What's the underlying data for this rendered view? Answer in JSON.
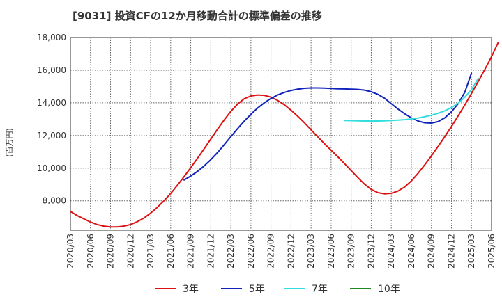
{
  "chart_data": {
    "type": "line",
    "title": "[9031]  投資CFの12か月移動合計の標準偏差の推移",
    "ylabel": "(百万円)",
    "xlabel": "",
    "ylim": [
      6200,
      18000
    ],
    "y_ticks": [
      8000,
      10000,
      12000,
      14000,
      16000,
      18000
    ],
    "y_tick_labels": [
      "8,000",
      "10,000",
      "12,000",
      "14,000",
      "16,000",
      "18,000"
    ],
    "x_tick_labels": [
      "2020/03",
      "2020/06",
      "2020/09",
      "2020/12",
      "2021/03",
      "2021/06",
      "2021/09",
      "2021/12",
      "2022/03",
      "2022/06",
      "2022/09",
      "2022/12",
      "2023/03",
      "2023/06",
      "2023/09",
      "2023/12",
      "2024/03",
      "2024/06",
      "2024/09",
      "2024/12",
      "2025/03",
      "2025/06"
    ],
    "grid": true,
    "legend_position": "bottom",
    "series": [
      {
        "name": "3年",
        "color": "#dd1111",
        "points": [
          [
            "2020/03",
            7350
          ],
          [
            "2020/04",
            7100
          ],
          [
            "2020/05",
            6900
          ],
          [
            "2020/06",
            6700
          ],
          [
            "2020/07",
            6550
          ],
          [
            "2020/08",
            6450
          ],
          [
            "2020/09",
            6400
          ],
          [
            "2020/10",
            6400
          ],
          [
            "2020/11",
            6450
          ],
          [
            "2020/12",
            6550
          ],
          [
            "2021/01",
            6720
          ],
          [
            "2021/02",
            6950
          ],
          [
            "2021/03",
            7250
          ],
          [
            "2021/04",
            7600
          ],
          [
            "2021/05",
            8000
          ],
          [
            "2021/06",
            8450
          ],
          [
            "2021/07",
            8950
          ],
          [
            "2021/08",
            9480
          ],
          [
            "2021/09",
            10030
          ],
          [
            "2021/10",
            10600
          ],
          [
            "2021/11",
            11180
          ],
          [
            "2021/12",
            11780
          ],
          [
            "2022/01",
            12380
          ],
          [
            "2022/02",
            12950
          ],
          [
            "2022/03",
            13480
          ],
          [
            "2022/04",
            13920
          ],
          [
            "2022/05",
            14250
          ],
          [
            "2022/06",
            14420
          ],
          [
            "2022/07",
            14480
          ],
          [
            "2022/08",
            14460
          ],
          [
            "2022/09",
            14350
          ],
          [
            "2022/10",
            14150
          ],
          [
            "2022/11",
            13880
          ],
          [
            "2022/12",
            13550
          ],
          [
            "2023/01",
            13180
          ],
          [
            "2023/02",
            12780
          ],
          [
            "2023/03",
            12350
          ],
          [
            "2023/04",
            11920
          ],
          [
            "2023/05",
            11500
          ],
          [
            "2023/06",
            11100
          ],
          [
            "2023/07",
            10700
          ],
          [
            "2023/08",
            10280
          ],
          [
            "2023/09",
            9850
          ],
          [
            "2023/10",
            9420
          ],
          [
            "2023/11",
            9020
          ],
          [
            "2023/12",
            8700
          ],
          [
            "2024/01",
            8500
          ],
          [
            "2024/02",
            8430
          ],
          [
            "2024/03",
            8460
          ],
          [
            "2024/04",
            8600
          ],
          [
            "2024/05",
            8850
          ],
          [
            "2024/06",
            9220
          ],
          [
            "2024/07",
            9680
          ],
          [
            "2024/08",
            10200
          ],
          [
            "2024/09",
            10750
          ],
          [
            "2024/10",
            11330
          ],
          [
            "2024/11",
            11930
          ],
          [
            "2024/12",
            12550
          ],
          [
            "2025/01",
            13200
          ],
          [
            "2025/02",
            13870
          ],
          [
            "2025/03",
            14570
          ],
          [
            "2025/04",
            15300
          ],
          [
            "2025/05",
            16050
          ],
          [
            "2025/06",
            16830
          ],
          [
            "2025/07",
            17700
          ]
        ]
      },
      {
        "name": "5年",
        "color": "#1122bb",
        "points": [
          [
            "2021/08",
            9280
          ],
          [
            "2021/09",
            9520
          ],
          [
            "2021/10",
            9800
          ],
          [
            "2021/11",
            10130
          ],
          [
            "2021/12",
            10520
          ],
          [
            "2022/01",
            10950
          ],
          [
            "2022/02",
            11430
          ],
          [
            "2022/03",
            11930
          ],
          [
            "2022/04",
            12420
          ],
          [
            "2022/05",
            12880
          ],
          [
            "2022/06",
            13300
          ],
          [
            "2022/07",
            13680
          ],
          [
            "2022/08",
            14000
          ],
          [
            "2022/09",
            14270
          ],
          [
            "2022/10",
            14480
          ],
          [
            "2022/11",
            14640
          ],
          [
            "2022/12",
            14760
          ],
          [
            "2023/01",
            14840
          ],
          [
            "2023/02",
            14890
          ],
          [
            "2023/03",
            14910
          ],
          [
            "2023/04",
            14910
          ],
          [
            "2023/05",
            14900
          ],
          [
            "2023/06",
            14880
          ],
          [
            "2023/07",
            14860
          ],
          [
            "2023/08",
            14850
          ],
          [
            "2023/09",
            14840
          ],
          [
            "2023/10",
            14820
          ],
          [
            "2023/11",
            14780
          ],
          [
            "2023/12",
            14680
          ],
          [
            "2024/01",
            14520
          ],
          [
            "2024/02",
            14280
          ],
          [
            "2024/03",
            13950
          ],
          [
            "2024/04",
            13620
          ],
          [
            "2024/05",
            13330
          ],
          [
            "2024/06",
            13080
          ],
          [
            "2024/07",
            12890
          ],
          [
            "2024/08",
            12780
          ],
          [
            "2024/09",
            12760
          ],
          [
            "2024/10",
            12850
          ],
          [
            "2024/11",
            13080
          ],
          [
            "2024/12",
            13450
          ],
          [
            "2025/01",
            13950
          ],
          [
            "2025/02",
            14650
          ],
          [
            "2025/03",
            15820
          ]
        ]
      },
      {
        "name": "7年",
        "color": "#33dddd",
        "points": [
          [
            "2023/08",
            12920
          ],
          [
            "2023/09",
            12910
          ],
          [
            "2023/10",
            12900
          ],
          [
            "2023/11",
            12890
          ],
          [
            "2023/12",
            12890
          ],
          [
            "2024/01",
            12890
          ],
          [
            "2024/02",
            12900
          ],
          [
            "2024/03",
            12920
          ],
          [
            "2024/04",
            12940
          ],
          [
            "2024/05",
            12970
          ],
          [
            "2024/06",
            13010
          ],
          [
            "2024/07",
            13070
          ],
          [
            "2024/08",
            13150
          ],
          [
            "2024/09",
            13240
          ],
          [
            "2024/10",
            13360
          ],
          [
            "2024/11",
            13510
          ],
          [
            "2024/12",
            13710
          ],
          [
            "2025/01",
            13980
          ],
          [
            "2025/02",
            14350
          ],
          [
            "2025/03",
            14800
          ],
          [
            "2025/04",
            15500
          ]
        ]
      },
      {
        "name": "10年",
        "color": "#228822",
        "points": []
      }
    ]
  }
}
